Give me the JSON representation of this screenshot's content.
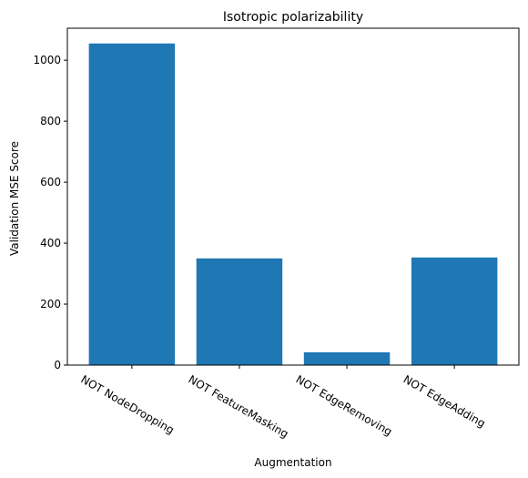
{
  "chart_data": {
    "type": "bar",
    "title": "Isotropic polarizability",
    "xlabel": "Augmentation",
    "ylabel": "Validation MSE Score",
    "categories": [
      "NOT NodeDropping",
      "NOT FeatureMasking",
      "NOT EdgeRemoving",
      "NOT EdgeAdding"
    ],
    "values": [
      1055,
      350,
      42,
      353
    ],
    "ylim": [
      0,
      1105
    ],
    "yticks": [
      0,
      200,
      400,
      600,
      800,
      1000
    ],
    "bar_color": "#1f77b4",
    "grid": false,
    "legend": false
  }
}
